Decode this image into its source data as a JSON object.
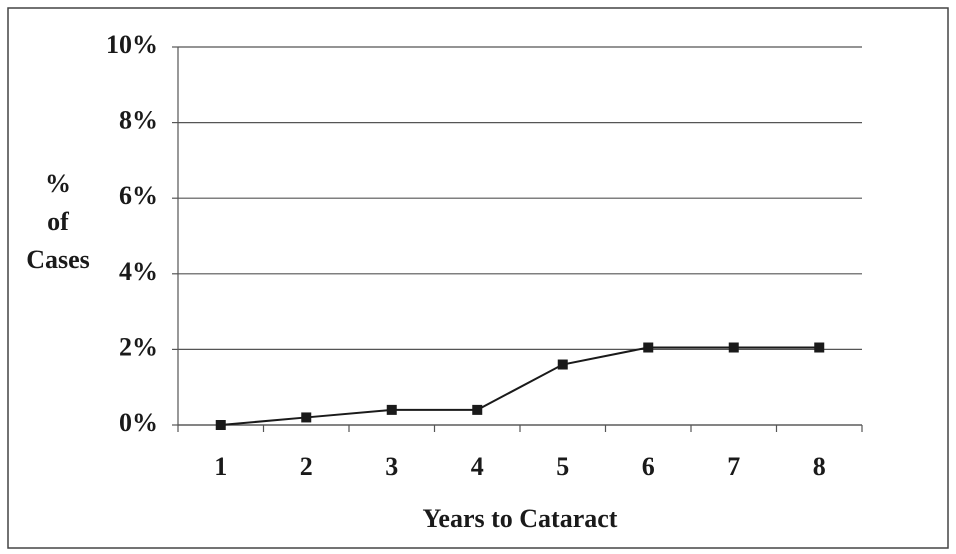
{
  "chart_data": {
    "type": "line",
    "x_label": "Years to Cataract",
    "y_label": [
      "%",
      "of",
      "Cases"
    ],
    "categories": [
      "1",
      "2",
      "3",
      "4",
      "5",
      "6",
      "7",
      "8"
    ],
    "values": [
      0,
      0.2,
      0.4,
      0.4,
      1.6,
      2.05,
      2.05,
      2.05
    ],
    "color": "#1a1a1a",
    "ylim": [
      0,
      10
    ],
    "yticks": [
      {
        "value": 0,
        "label": "0%"
      },
      {
        "value": 2,
        "label": "2%"
      },
      {
        "value": 4,
        "label": "4%"
      },
      {
        "value": 6,
        "label": "6%"
      },
      {
        "value": 8,
        "label": "8%"
      },
      {
        "value": 10,
        "label": "10%"
      }
    ],
    "grid": true
  }
}
